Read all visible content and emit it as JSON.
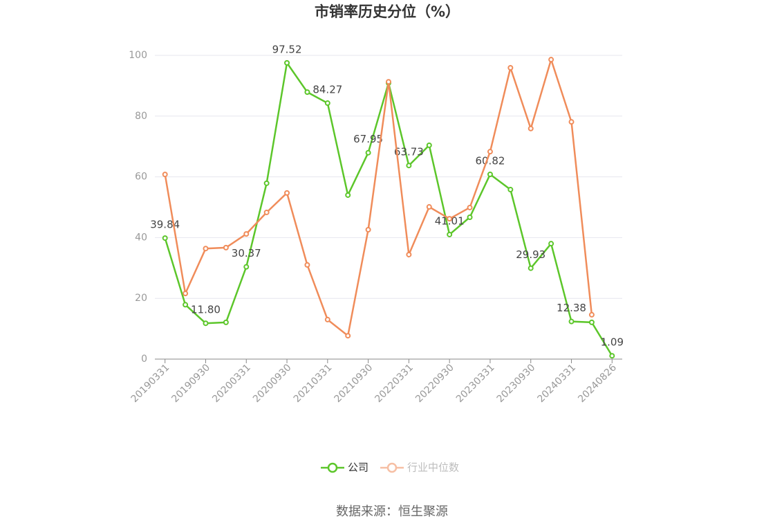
{
  "chart_data": {
    "type": "line",
    "title": "市销率历史分位（%）",
    "categories": [
      "20190331",
      null,
      "20190930",
      null,
      "20200331",
      null,
      "20200930",
      null,
      "20210331",
      null,
      "20210930",
      null,
      "20220331",
      null,
      "20220930",
      null,
      "20230331",
      null,
      "20230930",
      null,
      "20240331",
      null,
      "20240826"
    ],
    "series": [
      {
        "name": "公司",
        "color": "#5cc62a",
        "values": [
          39.84,
          17.9,
          11.8,
          12.1,
          30.37,
          57.9,
          97.52,
          87.9,
          84.27,
          54.0,
          67.95,
          90.9,
          63.73,
          70.4,
          41.01,
          46.7,
          60.82,
          55.8,
          29.93,
          38.0,
          12.38,
          12.1,
          1.09
        ],
        "value_labels": [
          "39.84",
          null,
          "11.80",
          null,
          "30.37",
          null,
          "97.52",
          null,
          "84.27",
          null,
          "67.95",
          null,
          "63.73",
          null,
          "41.01",
          null,
          "60.82",
          null,
          "29.93",
          null,
          "12.38",
          null,
          "1.09"
        ]
      },
      {
        "name": "行业中位数",
        "color": "#f08c5a",
        "values": [
          60.8,
          21.6,
          36.4,
          36.7,
          41.2,
          48.3,
          54.7,
          31.0,
          13.0,
          7.7,
          42.6,
          91.3,
          34.4,
          50.1,
          46.2,
          49.9,
          68.3,
          95.9,
          75.9,
          98.6,
          78.1,
          14.6,
          null
        ]
      }
    ],
    "ylim": [
      0,
      100
    ],
    "yticks": [
      0,
      20,
      40,
      60,
      80,
      100
    ],
    "grid": true,
    "source": "数据来源：恒生聚源"
  }
}
